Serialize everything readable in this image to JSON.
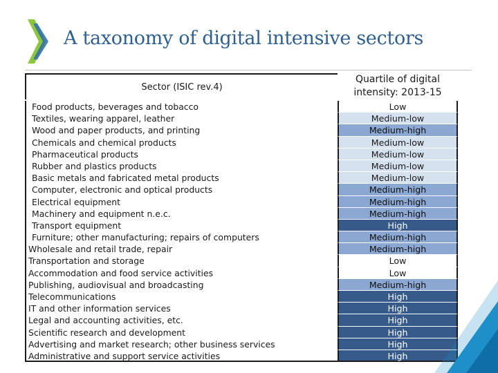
{
  "slide": {
    "title": "A taxonomy of digital intensive sectors"
  },
  "colors": {
    "title": "#2e5f8f",
    "logo_green": "#8cc63f",
    "logo_blue": "#2e6da4",
    "low": "#ffffff",
    "medium_low": "#d5e1ef",
    "medium_high": "#8ba8d3",
    "high": "#365a8a",
    "corner_accent": "#1f8fc9"
  },
  "table": {
    "header_sector": "Sector (ISIC rev.4)",
    "header_quartile_line1": "Quartile of digital",
    "header_quartile_line2": "intensity: 2013-15",
    "rows": [
      {
        "sector": "Food products, beverages and tobacco",
        "quartile": "Low",
        "level": "low",
        "indent": true
      },
      {
        "sector": "Textiles, wearing apparel, leather",
        "quartile": "Medium-low",
        "level": "mlow",
        "indent": true
      },
      {
        "sector": "Wood and paper products, and printing",
        "quartile": "Medium-high",
        "level": "mhigh",
        "indent": true
      },
      {
        "sector": "Chemicals and chemical products",
        "quartile": "Medium-low",
        "level": "mlow",
        "indent": true
      },
      {
        "sector": "Pharmaceutical products",
        "quartile": "Medium-low",
        "level": "mlow",
        "indent": true
      },
      {
        "sector": "Rubber and plastics products",
        "quartile": "Medium-low",
        "level": "mlow",
        "indent": true
      },
      {
        "sector": "Basic metals and fabricated metal products",
        "quartile": "Medium-low",
        "level": "mlow",
        "indent": true
      },
      {
        "sector": "Computer, electronic and optical products",
        "quartile": "Medium-high",
        "level": "mhigh",
        "indent": true
      },
      {
        "sector": "Electrical equipment",
        "quartile": "Medium-high",
        "level": "mhigh",
        "indent": true
      },
      {
        "sector": "Machinery and equipment n.e.c.",
        "quartile": "Medium-high",
        "level": "mhigh",
        "indent": true
      },
      {
        "sector": "Transport equipment",
        "quartile": "High",
        "level": "high",
        "indent": true
      },
      {
        "sector": "Furniture; other manufacturing; repairs of   computers",
        "quartile": "Medium-high",
        "level": "mhigh",
        "indent": true
      },
      {
        "sector": "Wholesale and retail trade, repair",
        "quartile": "Medium-high",
        "level": "mhigh",
        "indent": false
      },
      {
        "sector": "Transportation and storage",
        "quartile": "Low",
        "level": "low",
        "indent": false
      },
      {
        "sector": "Accommodation and food service activities",
        "quartile": "Low",
        "level": "low",
        "indent": false
      },
      {
        "sector": "Publishing, audiovisual and broadcasting",
        "quartile": "Medium-high",
        "level": "mhigh",
        "indent": false
      },
      {
        "sector": "Telecommunications",
        "quartile": "High",
        "level": "high",
        "indent": false
      },
      {
        "sector": "IT and other information services",
        "quartile": "High",
        "level": "high",
        "indent": false
      },
      {
        "sector": "Legal and accounting activities, etc.",
        "quartile": "High",
        "level": "high",
        "indent": false
      },
      {
        "sector": "Scientific research and development",
        "quartile": "High",
        "level": "high",
        "indent": false
      },
      {
        "sector": "Advertising and market research; other business services",
        "quartile": "High",
        "level": "high",
        "indent": false
      },
      {
        "sector": "Administrative and support service activities",
        "quartile": "High",
        "level": "high",
        "indent": false
      }
    ]
  }
}
